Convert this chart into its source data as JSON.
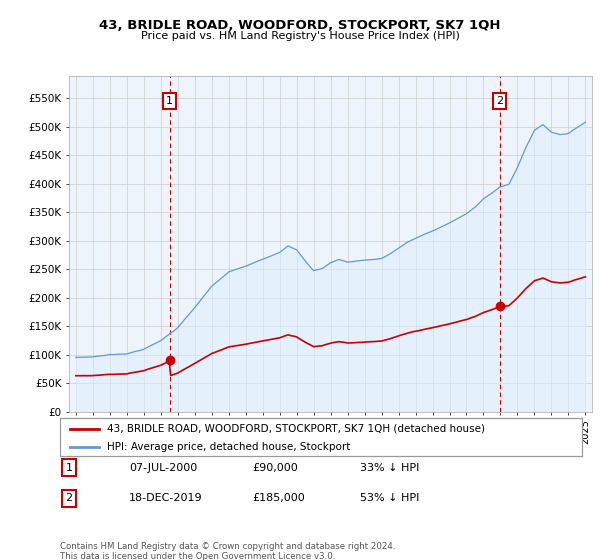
{
  "title": "43, BRIDLE ROAD, WOODFORD, STOCKPORT, SK7 1QH",
  "subtitle": "Price paid vs. HM Land Registry's House Price Index (HPI)",
  "ylabel_ticks": [
    "£0",
    "£50K",
    "£100K",
    "£150K",
    "£200K",
    "£250K",
    "£300K",
    "£350K",
    "£400K",
    "£450K",
    "£500K",
    "£550K"
  ],
  "ytick_vals": [
    0,
    50000,
    100000,
    150000,
    200000,
    250000,
    300000,
    350000,
    400000,
    450000,
    500000,
    550000
  ],
  "ylim": [
    0,
    590000
  ],
  "xlim_start": 1994.6,
  "xlim_end": 2025.4,
  "sale1_date": 2000.52,
  "sale1_price": 90000,
  "sale1_label": "1",
  "sale2_date": 2019.96,
  "sale2_price": 185000,
  "sale2_label": "2",
  "legend_line1": "43, BRIDLE ROAD, WOODFORD, STOCKPORT, SK7 1QH (detached house)",
  "legend_line2": "HPI: Average price, detached house, Stockport",
  "table_row1": [
    "1",
    "07-JUL-2000",
    "£90,000",
    "33% ↓ HPI"
  ],
  "table_row2": [
    "2",
    "18-DEC-2019",
    "£185,000",
    "53% ↓ HPI"
  ],
  "footnote": "Contains HM Land Registry data © Crown copyright and database right 2024.\nThis data is licensed under the Open Government Licence v3.0.",
  "sale_line_color": "#cc0000",
  "hpi_line_color": "#6699cc",
  "hpi_fill_color": "#ddeeff",
  "vline_color": "#cc0000",
  "background_color": "#ffffff",
  "grid_color": "#cccccc",
  "label_box_color": "#cc0000",
  "chart_bg": "#eef4fb"
}
